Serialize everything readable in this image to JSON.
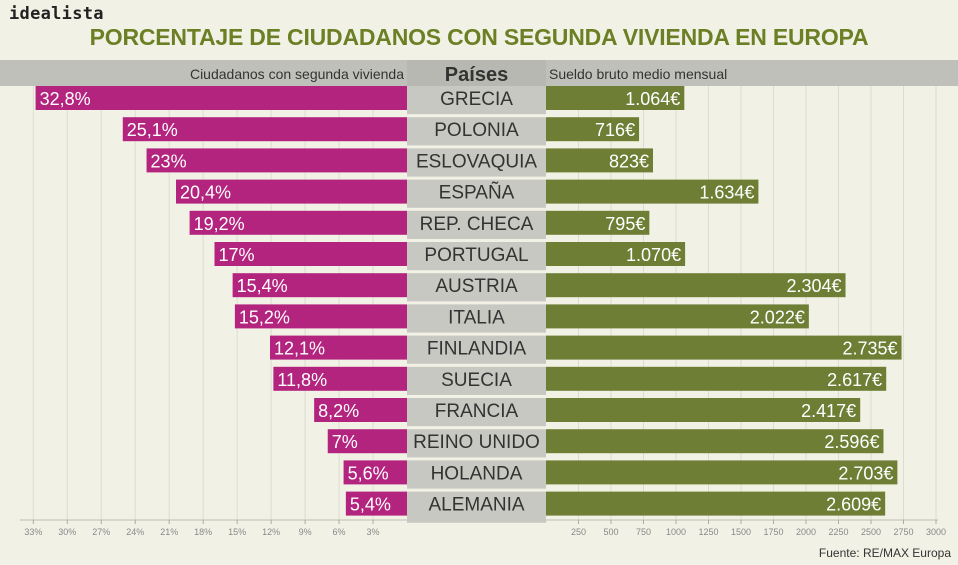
{
  "brand": "idealista",
  "title": "PORCENTAJE DE CIUDADANOS CON SEGUNDA VIVIENDA EN EUROPA",
  "source": "Fuente: RE/MAX Europa",
  "colors": {
    "left": "#b3247e",
    "right": "#6e7f35",
    "center": "#c8c8c3",
    "band": "#c0c0bb",
    "title": "#6b7f24"
  },
  "chart_data": {
    "type": "bar",
    "layout": "butterfly",
    "category_header": "Países",
    "categories": [
      "GRECIA",
      "POLONIA",
      "ESLOVAQUIA",
      "ESPAÑA",
      "REP. CHECA",
      "PORTUGAL",
      "AUSTRIA",
      "ITALIA",
      "FINLANDIA",
      "SUECIA",
      "FRANCIA",
      "REINO UNIDO",
      "HOLANDA",
      "ALEMANIA"
    ],
    "series": [
      {
        "name": "Ciudadanos con segunda vivienda",
        "side": "left",
        "values": [
          32.8,
          25.1,
          23,
          20.4,
          19.2,
          17,
          15.4,
          15.2,
          12.1,
          11.8,
          8.2,
          7,
          5.6,
          5.4
        ],
        "labels": [
          "32,8%",
          "25,1%",
          "23%",
          "20,4%",
          "19,2%",
          "17%",
          "15,4%",
          "15,2%",
          "12,1%",
          "11,8%",
          "8,2%",
          "7%",
          "5,6%",
          "5,4%"
        ],
        "axis": {
          "range": [
            0,
            34
          ],
          "ticks": [
            3,
            6,
            9,
            12,
            15,
            18,
            21,
            24,
            27,
            30,
            33
          ],
          "tick_labels": [
            "3%",
            "6%",
            "9%",
            "12%",
            "15%",
            "18%",
            "21%",
            "24%",
            "27%",
            "30%",
            "33%"
          ]
        }
      },
      {
        "name": "Sueldo bruto medio mensual",
        "side": "right",
        "values": [
          1064,
          716,
          823,
          1634,
          795,
          1070,
          2304,
          2022,
          2735,
          2617,
          2417,
          2596,
          2703,
          2609
        ],
        "labels": [
          "1.064€",
          "716€",
          "823€",
          "1.634€",
          "795€",
          "1.070€",
          "2.304€",
          "2.022€",
          "2.735€",
          "2.617€",
          "2.417€",
          "2.596€",
          "2.703€",
          "2.609€"
        ],
        "axis": {
          "range": [
            0,
            3000
          ],
          "ticks": [
            250,
            500,
            750,
            1000,
            1250,
            1500,
            1750,
            2000,
            2250,
            2500,
            2750,
            3000
          ],
          "tick_labels": [
            "250",
            "500",
            "750",
            "1000",
            "1250",
            "1500",
            "1750",
            "2000",
            "2250",
            "2500",
            "2750",
            "3000"
          ]
        }
      }
    ]
  }
}
